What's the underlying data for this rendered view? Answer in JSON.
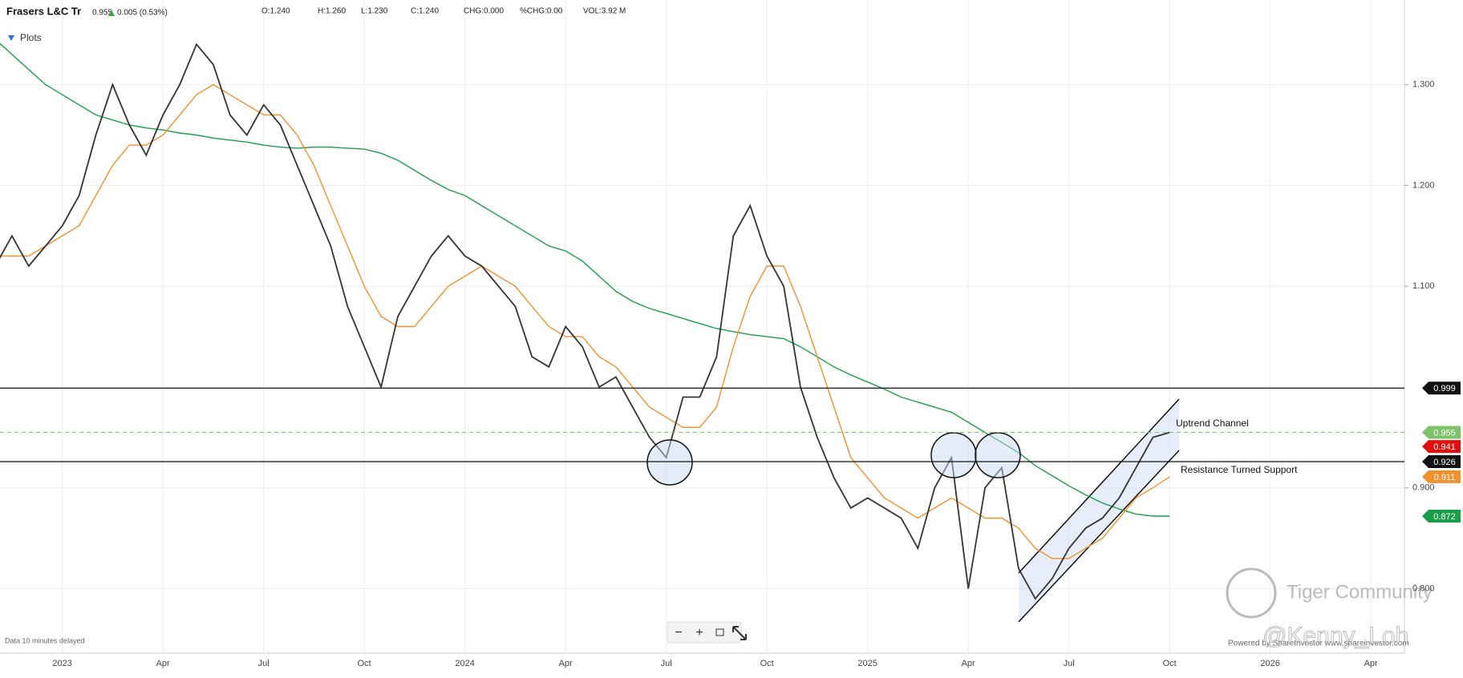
{
  "header": {
    "name": "Frasers L&C Tr",
    "last": "0.955",
    "change": "0.005 (0.53%)",
    "open": "O:1.240",
    "high": "H:1.260",
    "low": "L:1.230",
    "close": "C:1.240",
    "chg": "CHG:0.000",
    "pchg": "%CHG:0.00",
    "vol": "VOL:3.92 M",
    "plots": "Plots"
  },
  "footer": {
    "delay": "Data 10 minutes delayed",
    "powered": "Powered by ShareInvestor www.shareinvestor.com",
    "watermark": "Tiger Community",
    "user": "@Kenny_Loh"
  },
  "chart_data": {
    "type": "line",
    "categories": [
      null,
      null,
      null,
      null,
      "2023",
      null,
      null,
      null,
      null,
      null,
      "Apr",
      null,
      null,
      null,
      null,
      null,
      "Jul",
      null,
      null,
      null,
      null,
      null,
      "Oct",
      null,
      null,
      null,
      null,
      null,
      "2024",
      null,
      null,
      null,
      null,
      null,
      "Apr",
      null,
      null,
      null,
      null,
      null,
      "Jul",
      null,
      null,
      null,
      null,
      null,
      "Oct",
      null,
      null,
      null,
      null,
      null,
      "2025",
      null,
      null,
      null,
      null,
      null,
      "Apr",
      null,
      null,
      null,
      null,
      null,
      "Jul",
      null,
      null,
      null,
      null,
      null,
      "Oct",
      null,
      null,
      null,
      null,
      null,
      "2026",
      null,
      null,
      null,
      null,
      null,
      "Apr",
      null,
      null
    ],
    "series": [
      {
        "color": "#333333",
        "values": [
          1.12,
          1.15,
          1.12,
          1.14,
          1.16,
          1.19,
          1.25,
          1.3,
          1.26,
          1.23,
          1.27,
          1.3,
          1.34,
          1.32,
          1.27,
          1.25,
          1.28,
          1.26,
          1.22,
          1.18,
          1.14,
          1.08,
          1.04,
          1.0,
          1.07,
          1.1,
          1.13,
          1.15,
          1.13,
          1.12,
          1.1,
          1.08,
          1.03,
          1.02,
          1.06,
          1.04,
          1.0,
          1.01,
          0.98,
          0.95,
          0.93,
          0.99,
          0.99,
          1.03,
          1.15,
          1.18,
          1.13,
          1.1,
          1.0,
          0.95,
          0.91,
          0.88,
          0.89,
          0.88,
          0.87,
          0.84,
          0.9,
          0.93,
          0.8,
          0.9,
          0.92,
          0.82,
          0.79,
          0.81,
          0.84,
          0.86,
          0.87,
          0.89,
          0.92,
          0.95,
          0.955,
          null,
          null,
          null,
          null,
          null,
          null,
          null,
          null,
          null,
          null,
          null,
          null,
          null,
          null
        ]
      },
      {
        "color": "#f0912f",
        "values": [
          1.13,
          1.13,
          1.13,
          1.14,
          1.15,
          1.16,
          1.19,
          1.22,
          1.24,
          1.24,
          1.25,
          1.27,
          1.29,
          1.3,
          1.29,
          1.28,
          1.27,
          1.27,
          1.25,
          1.22,
          1.18,
          1.14,
          1.1,
          1.07,
          1.06,
          1.06,
          1.08,
          1.1,
          1.11,
          1.12,
          1.11,
          1.1,
          1.08,
          1.06,
          1.05,
          1.05,
          1.03,
          1.02,
          1.0,
          0.98,
          0.97,
          0.96,
          0.96,
          0.98,
          1.04,
          1.09,
          1.12,
          1.12,
          1.08,
          1.03,
          0.98,
          0.93,
          0.91,
          0.89,
          0.88,
          0.87,
          0.88,
          0.89,
          0.88,
          0.87,
          0.87,
          0.86,
          0.84,
          0.83,
          0.83,
          0.84,
          0.85,
          0.87,
          0.89,
          0.9,
          0.911,
          null,
          null,
          null,
          null,
          null,
          null,
          null,
          null,
          null,
          null,
          null,
          null,
          null,
          null
        ]
      },
      {
        "color": "#1a9e4a",
        "values": [
          1.345,
          1.33,
          1.315,
          1.3,
          1.29,
          1.28,
          1.27,
          1.265,
          1.26,
          1.257,
          1.255,
          1.252,
          1.25,
          1.247,
          1.245,
          1.243,
          1.24,
          1.238,
          1.237,
          1.238,
          1.238,
          1.237,
          1.236,
          1.232,
          1.225,
          1.215,
          1.205,
          1.196,
          1.19,
          1.18,
          1.17,
          1.16,
          1.15,
          1.14,
          1.135,
          1.125,
          1.11,
          1.095,
          1.085,
          1.078,
          1.073,
          1.068,
          1.063,
          1.058,
          1.055,
          1.052,
          1.05,
          1.048,
          1.04,
          1.03,
          1.02,
          1.012,
          1.005,
          0.998,
          0.99,
          0.985,
          0.98,
          0.975,
          0.965,
          0.955,
          0.945,
          0.935,
          0.922,
          0.912,
          0.902,
          0.893,
          0.885,
          0.879,
          0.874,
          0.872,
          0.872,
          null,
          null,
          null,
          null,
          null,
          null,
          null,
          null,
          null,
          null,
          null,
          null,
          null,
          null
        ]
      }
    ],
    "ylim": [
      0.736,
      1.384
    ],
    "yticks": [
      {
        "value": 0.8,
        "label": "0.800"
      },
      {
        "value": 0.9,
        "label": "0.900"
      },
      {
        "value": 1.1,
        "label": "1.100"
      },
      {
        "value": 1.2,
        "label": "1.200"
      },
      {
        "value": 1.3,
        "label": "1.300"
      }
    ],
    "grid": true,
    "price_markers": [
      {
        "value": 0.999,
        "color": "#111111",
        "line": "solid"
      },
      {
        "value": 0.955,
        "color": "#7cc36a",
        "line": "dashed"
      },
      {
        "value": 0.941,
        "color": "#e01010",
        "line": "none"
      },
      {
        "value": 0.926,
        "color": "#111111",
        "line": "solid"
      },
      {
        "value": 0.911,
        "color": "#f0912f",
        "line": "none"
      },
      {
        "value": 0.872,
        "color": "#1a9e4a",
        "line": "none"
      }
    ],
    "annotations": [
      "Uptrend Channel",
      "Resistance Turned Support"
    ]
  }
}
